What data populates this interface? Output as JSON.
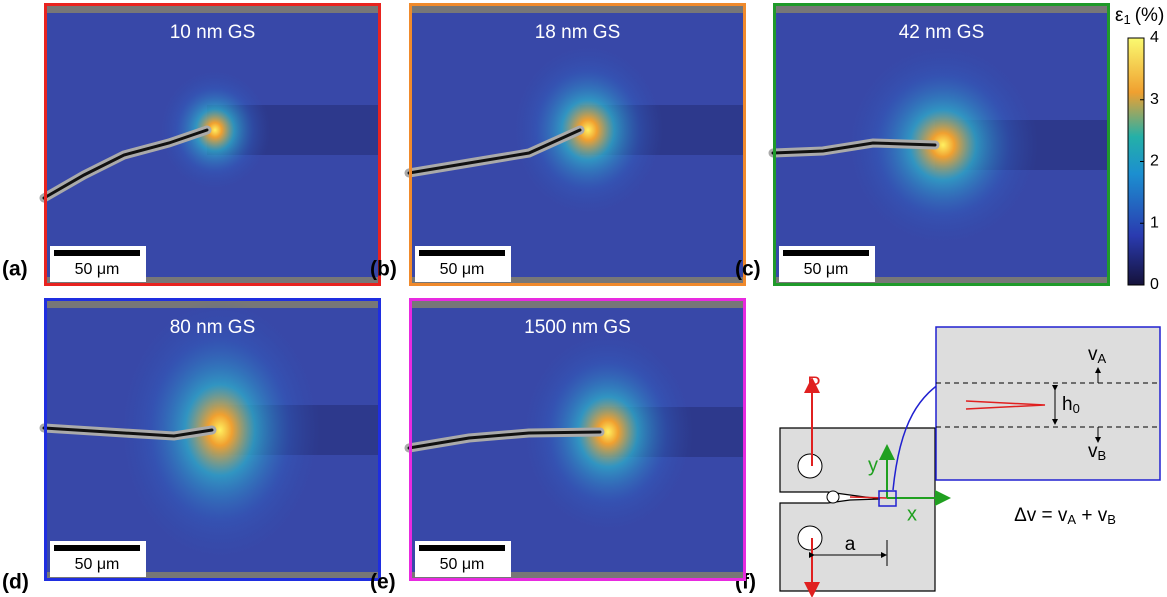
{
  "panels": [
    {
      "label": "(a)",
      "title": "10 nm GS",
      "scale_bar": "50 μm",
      "color": "#e8231f"
    },
    {
      "label": "(b)",
      "title": "18 nm GS",
      "scale_bar": "50 μm",
      "color": "#f08a2c"
    },
    {
      "label": "(c)",
      "title": "42 nm GS",
      "scale_bar": "50 μm",
      "color": "#1f9a2a"
    },
    {
      "label": "(d)",
      "title": "80 nm GS",
      "scale_bar": "50 μm",
      "color": "#1f2ee0"
    },
    {
      "label": "(e)",
      "title": "1500 nm GS",
      "scale_bar": "50 μm",
      "color": "#e82ae0"
    }
  ],
  "colorbar": {
    "symbol": "ε",
    "symbol_sub": "1",
    "unit": "(%)",
    "lim": [
      0,
      4
    ],
    "ticks": [
      0,
      1,
      2,
      3,
      4
    ]
  },
  "diagram": {
    "label": "(f)",
    "load": "P",
    "axis_y": "y",
    "axis_x": "x",
    "crack_length": "a",
    "v_a": {
      "text": "v",
      "sub": "A"
    },
    "v_b": {
      "text": "v",
      "sub": "B"
    },
    "h0": {
      "text": "h",
      "sub": "0"
    },
    "equation": [
      "Δv = v",
      "A",
      " + v",
      "B"
    ]
  }
}
